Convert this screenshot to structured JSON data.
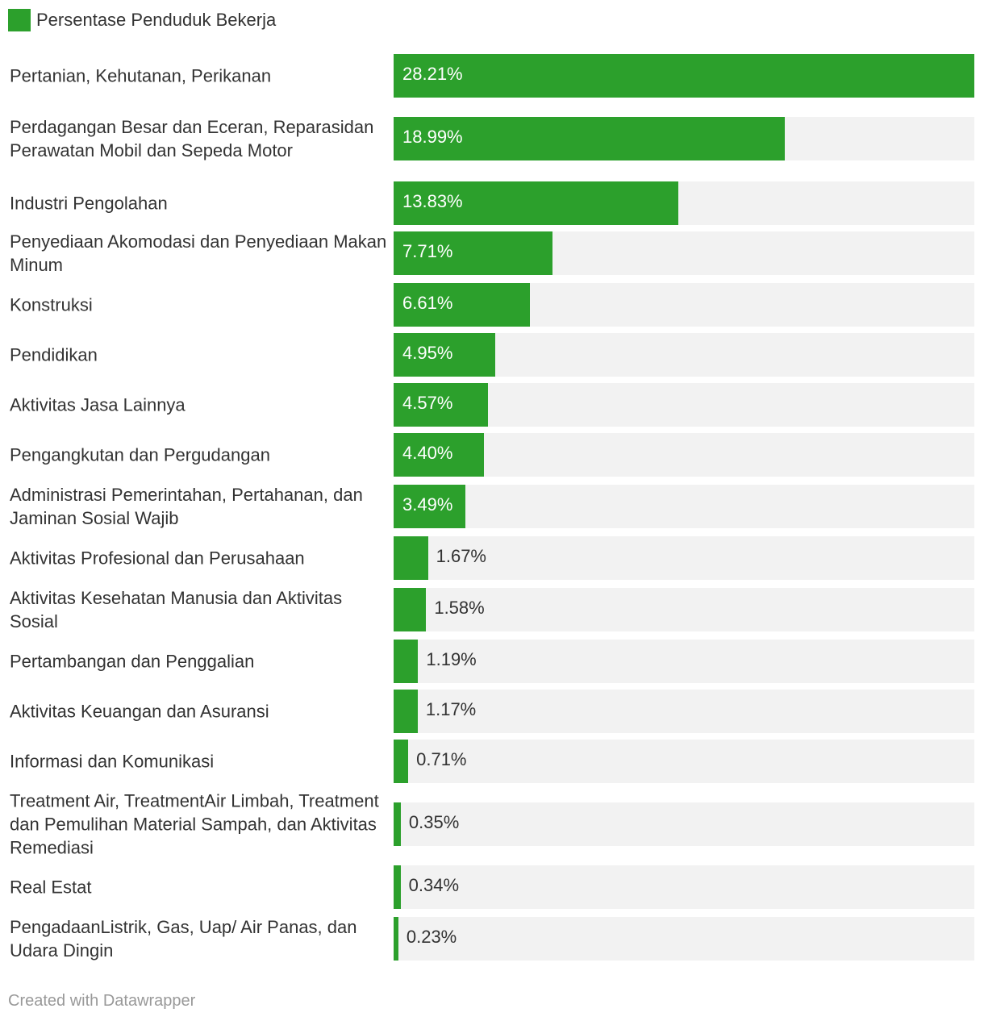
{
  "colors": {
    "bar": "#2ca02c",
    "track": "#f2f2f2"
  },
  "legend": {
    "label": "Persentase Penduduk Bekerja"
  },
  "credit": "Created with Datawrapper",
  "chart_data": {
    "type": "bar",
    "orientation": "horizontal",
    "xlim": [
      0,
      28.21
    ],
    "legend_position": "top-left",
    "series": [
      {
        "name": "Persentase Penduduk Bekerja"
      }
    ],
    "rows": [
      {
        "label": "Pertanian, Kehutanan, Perikanan",
        "value": 28.21,
        "display": "28.21%"
      },
      {
        "label": "Perdagangan Besar dan Eceran, Reparasidan Perawatan Mobil dan Sepeda Motor",
        "value": 18.99,
        "display": "18.99%"
      },
      {
        "label": "Industri Pengolahan",
        "value": 13.83,
        "display": "13.83%"
      },
      {
        "label": "Penyediaan Akomodasi dan Penyediaan Makan Minum",
        "value": 7.71,
        "display": "7.71%"
      },
      {
        "label": "Konstruksi",
        "value": 6.61,
        "display": "6.61%"
      },
      {
        "label": "Pendidikan",
        "value": 4.95,
        "display": "4.95%"
      },
      {
        "label": "Aktivitas Jasa Lainnya",
        "value": 4.57,
        "display": "4.57%"
      },
      {
        "label": "Pengangkutan dan Pergudangan",
        "value": 4.4,
        "display": "4.40%"
      },
      {
        "label": "Administrasi Pemerintahan, Pertahanan, dan Jaminan Sosial Wajib",
        "value": 3.49,
        "display": "3.49%"
      },
      {
        "label": "Aktivitas Profesional dan Perusahaan",
        "value": 1.67,
        "display": "1.67%"
      },
      {
        "label": "Aktivitas Kesehatan Manusia dan Aktivitas Sosial",
        "value": 1.58,
        "display": "1.58%"
      },
      {
        "label": "Pertambangan dan Penggalian",
        "value": 1.19,
        "display": "1.19%"
      },
      {
        "label": "Aktivitas Keuangan dan Asuransi",
        "value": 1.17,
        "display": "1.17%"
      },
      {
        "label": "Informasi dan Komunikasi",
        "value": 0.71,
        "display": "0.71%"
      },
      {
        "label": "Treatment Air, TreatmentAir Limbah, Treatment dan Pemulihan Material Sampah, dan Aktivitas Remediasi",
        "value": 0.35,
        "display": "0.35%"
      },
      {
        "label": "Real Estat",
        "value": 0.34,
        "display": "0.34%"
      },
      {
        "label": "PengadaanListrik, Gas, Uap/ Air Panas, dan Udara Dingin",
        "value": 0.23,
        "display": "0.23%"
      }
    ]
  }
}
